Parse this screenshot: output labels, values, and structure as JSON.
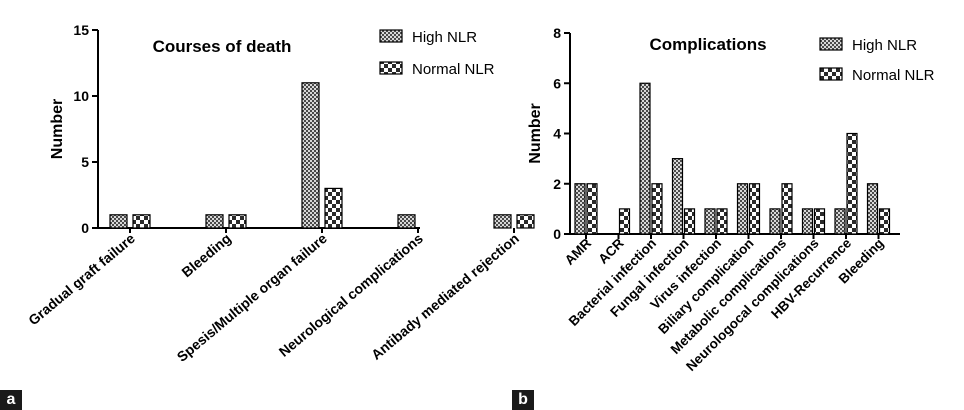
{
  "panel_labels": [
    "a",
    "b"
  ],
  "chart_data": [
    {
      "type": "bar",
      "title": "Courses of death",
      "xlabel": "",
      "ylabel": "Number",
      "ylim": [
        0,
        15
      ],
      "yticks": [
        0,
        5,
        10,
        15
      ],
      "legend_position": "top-right",
      "categories": [
        "Gradual graft failure",
        "Bleeding",
        "Spesis/Multiple organ failure",
        "Neurological complications",
        "Antibady mediated rejection"
      ],
      "series": [
        {
          "name": "High NLR",
          "values": [
            1,
            1,
            11,
            1,
            1
          ]
        },
        {
          "name": "Normal NLR",
          "values": [
            1,
            1,
            3,
            0,
            1
          ]
        }
      ]
    },
    {
      "type": "bar",
      "title": "Complications",
      "xlabel": "",
      "ylabel": "Number",
      "ylim": [
        0,
        8
      ],
      "yticks": [
        0,
        2,
        4,
        6,
        8
      ],
      "legend_position": "top-right",
      "categories": [
        "AMR",
        "ACR",
        "Bacterial infection",
        "Fungal infection",
        "Virus infection",
        "Biliary complication",
        "Metabolic complications",
        "Neurologocal complications",
        "HBV-Recurrence",
        "Bleeding"
      ],
      "series": [
        {
          "name": "High NLR",
          "values": [
            2,
            0,
            6,
            3,
            1,
            2,
            1,
            1,
            1,
            2
          ]
        },
        {
          "name": "Normal NLR",
          "values": [
            2,
            1,
            2,
            1,
            1,
            2,
            2,
            1,
            4,
            1
          ]
        }
      ]
    }
  ]
}
